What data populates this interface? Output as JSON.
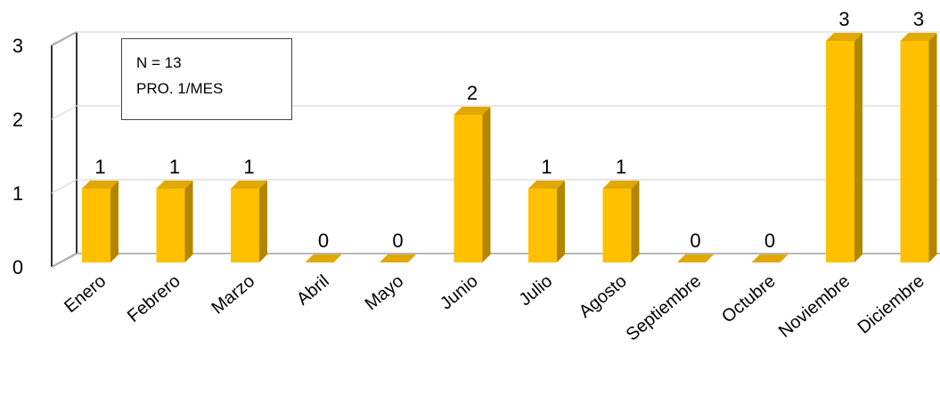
{
  "chart_data": {
    "type": "bar",
    "categories": [
      "Enero",
      "Febrero",
      "Marzo",
      "Abril",
      "Mayo",
      "Junio",
      "Julio",
      "Agosto",
      "Septiembre",
      "Octubre",
      "Noviembre",
      "Diciembre"
    ],
    "values": [
      1,
      1,
      1,
      0,
      0,
      2,
      1,
      1,
      0,
      0,
      3,
      3
    ],
    "title": "",
    "xlabel": "",
    "ylabel": "",
    "ylim": [
      0,
      3
    ],
    "yticks": [
      0,
      1,
      2,
      3
    ],
    "grid": true,
    "bar_color": "#FFC000",
    "bar_side_color": "#B38600",
    "bar_top_color": "#E0A800"
  },
  "annotation": {
    "line1": "N = 13",
    "line2": "PRO. 1/MES"
  }
}
